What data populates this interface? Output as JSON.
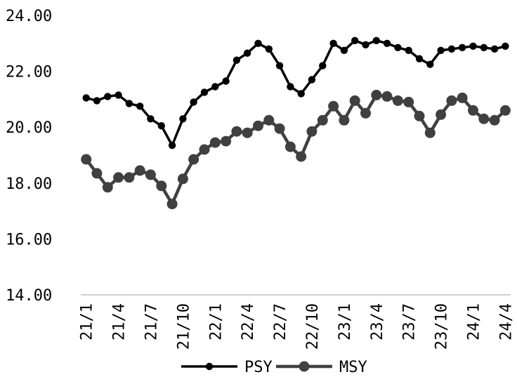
{
  "chart_data": {
    "type": "line",
    "title": "",
    "xlabel": "",
    "ylabel": "",
    "ylim": [
      14,
      24
    ],
    "y_ticks": [
      "14.00",
      "16.00",
      "18.00",
      "20.00",
      "22.00",
      "24.00"
    ],
    "x_tick_labels": [
      "21/1",
      "21/4",
      "21/7",
      "21/10",
      "22/1",
      "22/4",
      "22/7",
      "22/10",
      "23/1",
      "23/4",
      "23/7",
      "23/10",
      "24/1",
      "24/4"
    ],
    "categories": [
      "21/1",
      "21/2",
      "21/3",
      "21/4",
      "21/5",
      "21/6",
      "21/7",
      "21/8",
      "21/9",
      "21/10",
      "21/11",
      "21/12",
      "22/1",
      "22/2",
      "22/3",
      "22/4",
      "22/5",
      "22/6",
      "22/7",
      "22/8",
      "22/9",
      "22/10",
      "22/11",
      "22/12",
      "23/1",
      "23/2",
      "23/3",
      "23/4",
      "23/5",
      "23/6",
      "23/7",
      "23/8",
      "23/9",
      "23/10",
      "23/11",
      "23/12",
      "24/1",
      "24/2",
      "24/3",
      "24/4"
    ],
    "grid": false,
    "legend_position": "bottom-center",
    "series": [
      {
        "name": "PSY",
        "color": "#000000",
        "values": [
          21.05,
          20.95,
          21.1,
          21.15,
          20.85,
          20.75,
          20.3,
          20.05,
          19.35,
          20.3,
          20.9,
          21.25,
          21.45,
          21.65,
          22.4,
          22.65,
          23.0,
          22.8,
          22.2,
          21.45,
          21.2,
          21.7,
          22.2,
          23.0,
          22.75,
          23.1,
          22.95,
          23.1,
          23.0,
          22.85,
          22.75,
          22.45,
          22.25,
          22.75,
          22.8,
          22.85,
          22.9,
          22.85,
          22.8,
          22.9
        ]
      },
      {
        "name": "MSY",
        "color": "#404040",
        "values": [
          18.85,
          18.35,
          17.85,
          18.2,
          18.2,
          18.45,
          18.3,
          17.9,
          17.25,
          18.15,
          18.85,
          19.2,
          19.45,
          19.5,
          19.85,
          19.8,
          20.05,
          20.25,
          19.95,
          19.3,
          18.95,
          19.85,
          20.25,
          20.75,
          20.25,
          20.95,
          20.5,
          21.15,
          21.1,
          20.95,
          20.9,
          20.4,
          19.8,
          20.45,
          20.95,
          21.05,
          20.6,
          20.3,
          20.25,
          20.6
        ]
      }
    ]
  }
}
